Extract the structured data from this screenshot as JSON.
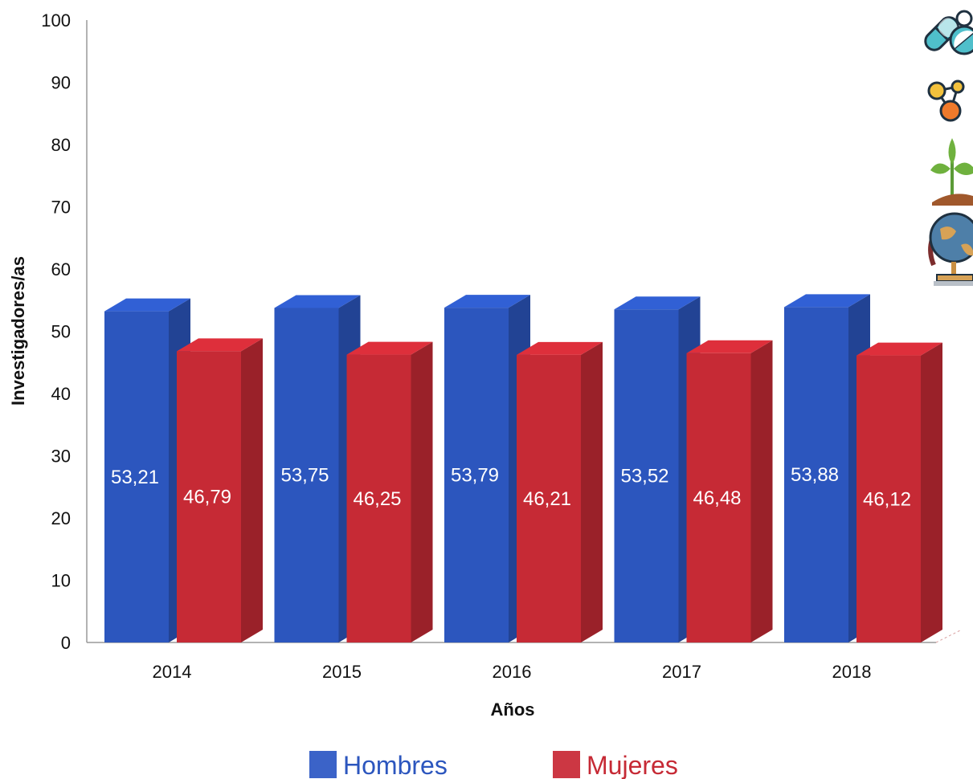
{
  "chart_data": {
    "type": "bar",
    "title": "",
    "xlabel": "Años",
    "ylabel": "Investigadores/as",
    "ylim": [
      0,
      100
    ],
    "yticks": [
      0,
      10,
      20,
      30,
      40,
      50,
      60,
      70,
      80,
      90,
      100
    ],
    "categories": [
      "2014",
      "2015",
      "2016",
      "2017",
      "2018"
    ],
    "series": [
      {
        "name": "Hombres",
        "color": "#2C56BE",
        "values": [
          53.21,
          53.75,
          53.79,
          53.52,
          53.88
        ],
        "labels": [
          "53,21",
          "53,75",
          "53,79",
          "53,52",
          "53,88"
        ]
      },
      {
        "name": "Mujeres",
        "color": "#C62A35",
        "values": [
          46.79,
          46.25,
          46.21,
          46.48,
          46.12
        ],
        "labels": [
          "46,79",
          "46,25",
          "46,21",
          "46,48",
          "46,12"
        ]
      }
    ],
    "legend_position": "bottom-center",
    "grid": false,
    "style": "3d-bars"
  },
  "decorations": {
    "icons": [
      "pills-icon",
      "molecule-icon",
      "sprout-icon",
      "globe-icon"
    ]
  }
}
